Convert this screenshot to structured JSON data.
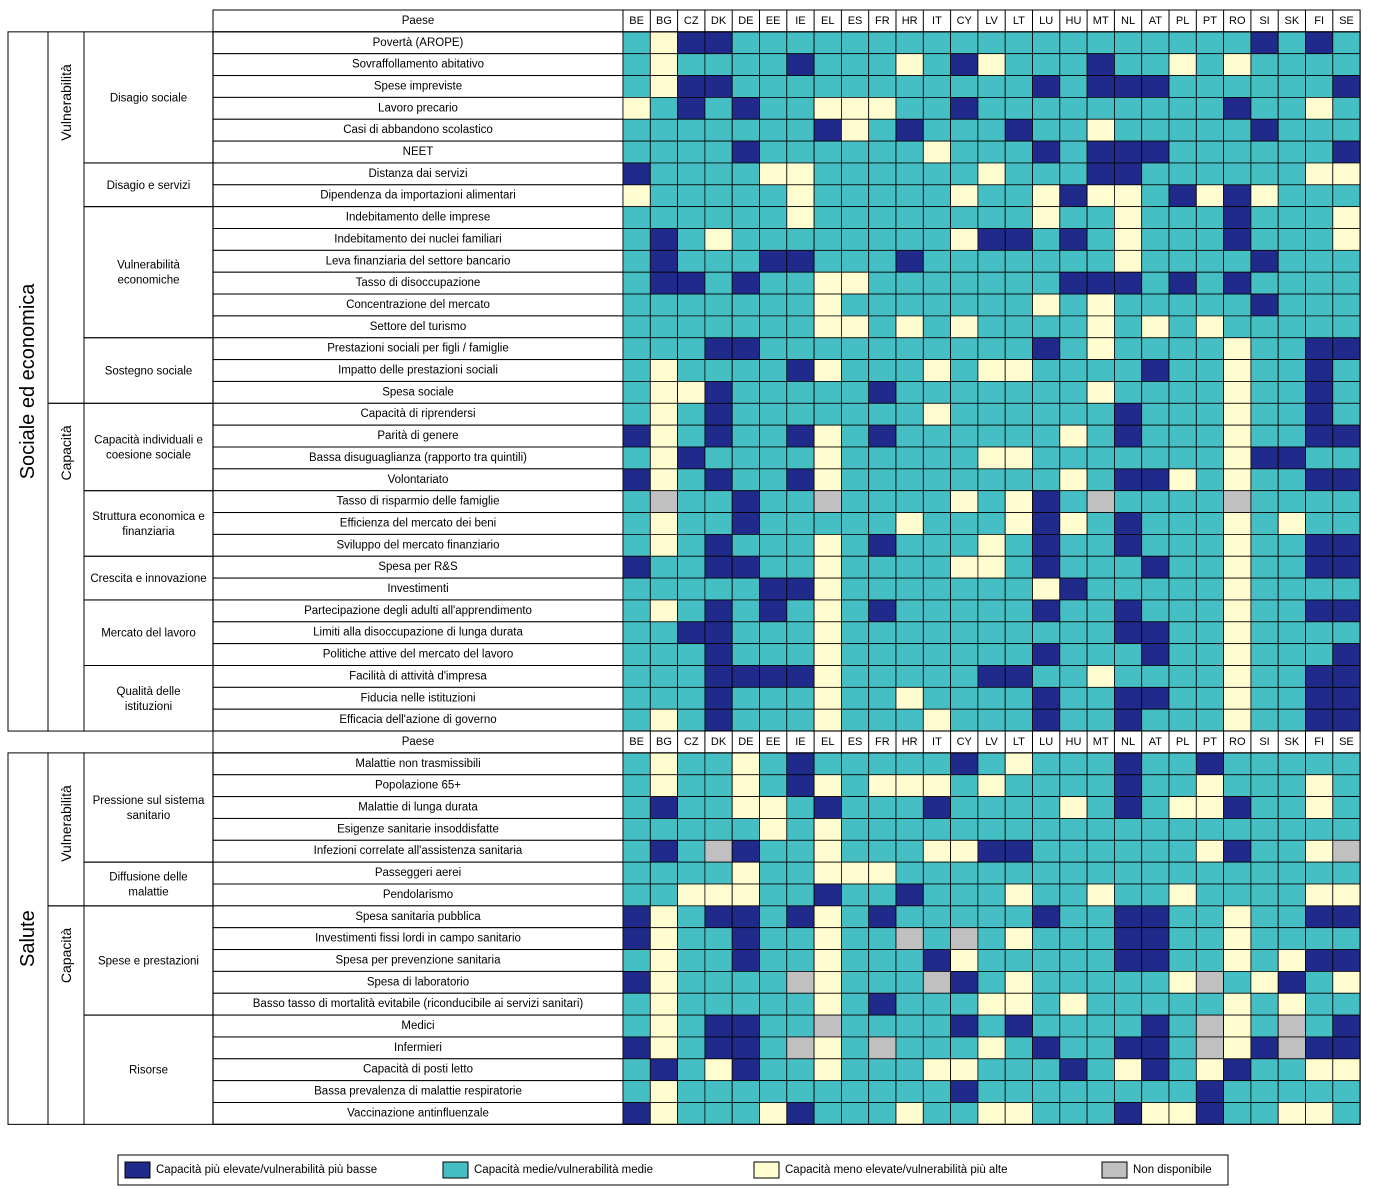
{
  "chart_data": {
    "type": "heatmap",
    "header_label": "Paese",
    "countries": [
      "BE",
      "BG",
      "CZ",
      "DK",
      "DE",
      "EE",
      "IE",
      "EL",
      "ES",
      "FR",
      "HR",
      "IT",
      "CY",
      "LV",
      "LT",
      "LU",
      "HU",
      "MT",
      "NL",
      "AT",
      "PL",
      "PT",
      "RO",
      "SI",
      "SK",
      "FI",
      "SE"
    ],
    "color_scale": {
      "H": "#1f2a8a",
      "M": "#46bfc4",
      "L": "#fffdd0",
      "N": "#c0c0c0"
    },
    "legend": [
      {
        "code": "H",
        "label": "Capacità più elevate/vulnerabilità più basse"
      },
      {
        "code": "M",
        "label": "Capacità medie/vulnerabilità medie"
      },
      {
        "code": "L",
        "label": "Capacità meno elevate/vulnerabilità più alte"
      },
      {
        "code": "N",
        "label": "Non disponibile"
      }
    ],
    "sections": [
      {
        "name": "Sociale ed economica",
        "subsections": [
          {
            "name": "Vulnerabilità",
            "groups": [
              {
                "name": "Disagio sociale",
                "rows": [
                  {
                    "label": "Povertà (AROPE)",
                    "values": "MLHHMMMMMMMMMMMMMMMMMMMHMHM"
                  },
                  {
                    "label": "Sovraffollamento abitativo",
                    "values": "MLMMMMHMMMLMHLMMMHMMLMLMMMM"
                  },
                  {
                    "label": "Spese impreviste",
                    "values": "MLHHMMMMMMMMMMMHMHHHMMMMMMH"
                  },
                  {
                    "label": "Lavoro precario",
                    "values": "LMHMHMMLLLMMHMMMMMMMMMHMMLM"
                  },
                  {
                    "label": "Casi di abbandono scolastico",
                    "values": "MMMMMMMHLMHMMMHMMLMMMMMHMMM"
                  },
                  {
                    "label": "NEET",
                    "values": "MMMMHMMMMMMLMMMHMHHHMMMMMMH"
                  }
                ]
              },
              {
                "name": "Disagio e servizi",
                "rows": [
                  {
                    "label": "Distanza dai servizi",
                    "values": "HMMMMLLMMMMMMLMMMHHMMMMMMLL"
                  },
                  {
                    "label": "Dipendenza da importazioni alimentari",
                    "values": "LMMMMMLMMMMMLMMLHLLMHLHLMMM"
                  }
                ]
              },
              {
                "name": "Vulnerabilità economiche",
                "rows": [
                  {
                    "label": "Indebitamento delle imprese",
                    "values": "MMMMMMLMMMMMMMMLMMLMMMHMMML"
                  },
                  {
                    "label": "Indebitamento dei nuclei familiari",
                    "values": "MHMLMMMMMMMMLHHMHMLMMMHMMML"
                  },
                  {
                    "label": "Leva finanziaria del settore bancario",
                    "values": "MHMMMHHMMMHMMMMMMMLMMMMHMMM"
                  },
                  {
                    "label": "Tasso di disoccupazione",
                    "values": "MHHMHMMLLMMMMMMMHHHMHMHMMMM"
                  },
                  {
                    "label": "Concentrazione del mercato",
                    "values": "MMMMMMMLMMMMMMMLMLMMMMMHMMM"
                  },
                  {
                    "label": "Settore del turismo",
                    "values": "MMMMMMMLLMLMLMMMMLMLMLMMMMM"
                  }
                ]
              },
              {
                "name": "Sostegno sociale",
                "rows": [
                  {
                    "label": "Prestazioni sociali per figli / famiglie",
                    "values": "MMMHHMMMMMMMMMMHMLMMMMLMMHH"
                  },
                  {
                    "label": "Impatto delle prestazioni sociali",
                    "values": "MLMMMMHLMMMLMLLMMMMHMMLMMHM"
                  },
                  {
                    "label": "Spesa sociale",
                    "values": "MLLHMMMMMHMMMMMMMLMMMMLMMHM"
                  }
                ]
              }
            ]
          },
          {
            "name": "Capacità",
            "groups": [
              {
                "name": "Capacità individuali e coesione sociale",
                "rows": [
                  {
                    "label": "Capacità di riprendersi",
                    "values": "MLMHMMMMMMMLMMMMMMHMMMLMMHM"
                  },
                  {
                    "label": "Parità di genere",
                    "values": "HLMHMMHLMHMMMMMMLMHMMMLMMHH"
                  },
                  {
                    "label": "Bassa disuguaglianza (rapporto tra quintili)",
                    "values": "MLHMMMMLMMMMMLLMMMMMMMLHHMM"
                  },
                  {
                    "label": "Volontariato",
                    "values": "HLMHMMHLMMMMMMMMLMHHLMLMMHH"
                  }
                ]
              },
              {
                "name": "Struttura economica e finanziaria",
                "rows": [
                  {
                    "label": "Tasso di risparmio delle famiglie",
                    "values": "MNMMHMMNMMMMLMLHMNMMMMNMMMM"
                  },
                  {
                    "label": "Efficienza del mercato dei beni",
                    "values": "MLMMHMMMMMLMMMLHLMHMMMLMLMM"
                  },
                  {
                    "label": "Sviluppo del mercato finanziario",
                    "values": "MLMHMMMLMHMMMLMHMMHMMMLMMHH"
                  }
                ]
              },
              {
                "name": "Crescita e innovazione",
                "rows": [
                  {
                    "label": "Spesa per R&S",
                    "values": "HMMHHMMLMMMMLLMHMMMHMMLMMHH"
                  },
                  {
                    "label": "Investimenti",
                    "values": "MMMMMHHLMMMMMMMLHMMMMMLMMMM"
                  }
                ]
              },
              {
                "name": "Mercato del lavoro",
                "rows": [
                  {
                    "label": "Partecipazione degli adulti all'apprendimento",
                    "values": "MLMHMHMLMHMMMMMHMMHMMMLMMHH"
                  },
                  {
                    "label": "Limiti alla disoccupazione di lunga durata",
                    "values": "MMHHMMMLMMMMMMMMMMHHMMLMMMM"
                  },
                  {
                    "label": "Politiche attive del mercato del lavoro",
                    "values": "MMMHMMMLMMMMMMMHMMMHMMLMMMH"
                  }
                ]
              },
              {
                "name": "Qualità delle istituzioni",
                "rows": [
                  {
                    "label": "Facilità di attività d'impresa",
                    "values": "MMMHHHHLMMMMMHHMMLMMMMLMMHH"
                  },
                  {
                    "label": "Fiducia nelle istituzioni",
                    "values": "MMMHMMMLMMLMMMMHMMHHMMLMMHH"
                  },
                  {
                    "label": "Efficacia dell'azione di governo",
                    "values": "MLMHMMMLMMMLMMMHMMHMMMLMMHH"
                  }
                ]
              }
            ]
          }
        ]
      },
      {
        "name": "Salute",
        "subsections": [
          {
            "name": "Vulnerabilità",
            "groups": [
              {
                "name": "Pressione sul sistema sanitario",
                "rows": [
                  {
                    "label": "Malattie non trasmissibili",
                    "values": "MLMMLMHMMMMMHMLMMMHMMHMMMMM"
                  },
                  {
                    "label": "Popolazione 65+",
                    "values": "MLMMLMHLMLLLMLMMMMHMMLMMMLM"
                  },
                  {
                    "label": "Malattie di lunga durata",
                    "values": "MHMMLLMHMMMHMMMMLMHMLLHMMLM"
                  },
                  {
                    "label": "Esigenze sanitarie insoddisfatte",
                    "values": "MMMMMLMLMMMMMMMMMMMMMMMMMMM"
                  },
                  {
                    "label": "Infezioni correlate all'assistenza sanitaria",
                    "values": "MHMNHMMLMMMLLHHMMMMMMLHMMLN"
                  }
                ]
              },
              {
                "name": "Diffusione delle malattie",
                "rows": [
                  {
                    "label": "Passeggeri aerei",
                    "values": "MMMMLMMLLLMMMMMMMMMMMMMMMMM"
                  },
                  {
                    "label": "Pendolarismo",
                    "values": "MMLLLMMHMMHMMMLMMLMMLMMMMLL"
                  }
                ]
              }
            ]
          },
          {
            "name": "Capacità",
            "groups": [
              {
                "name": "Spese e prestazioni",
                "rows": [
                  {
                    "label": "Spesa sanitaria pubblica",
                    "values": "HLMHHMHLMHMMMMMHMMHHMMLMMHH"
                  },
                  {
                    "label": "Investimenti fissi lordi in campo sanitario",
                    "values": "HLMMHMMLMMNMNMLMMMHHMMLMMMM"
                  },
                  {
                    "label": "Spesa per prevenzione sanitaria",
                    "values": "MLMMHMMLMMMHLMMMMMHHMMLMLHH"
                  },
                  {
                    "label": "Spesa di laboratorio",
                    "values": "HLMMMMNLMMMNHMLMMMMMLNMLHML"
                  },
                  {
                    "label": "Basso tasso di mortalità evitabile (riconducibile ai servizi sanitari)",
                    "values": "MLMMMMMLMHMMMLLMLMMMMMLMLMM"
                  }
                ]
              },
              {
                "name": "Risorse",
                "rows": [
                  {
                    "label": "Medici",
                    "values": "MLMHHMMNMMMMHMHMMMMHMNLMNMH"
                  },
                  {
                    "label": "Infermieri",
                    "values": "HLMHHMNLMNMMMLMHMMHHMNLHNHH"
                  },
                  {
                    "label": "Capacità di posti letto",
                    "values": "MHMLHMMLMMMLLMMMHMLHMLHMMLL"
                  },
                  {
                    "label": "Bassa prevalenza di malattie respiratorie",
                    "values": "MLMMMMMMMMMMHMMMMMMMMHMMMMM"
                  },
                  {
                    "label": "Vaccinazione antinfluenzale",
                    "values": "HLMMMLHMMMLMMLLMMMHLLHMMLLM"
                  }
                ]
              }
            ]
          }
        ]
      }
    ]
  }
}
